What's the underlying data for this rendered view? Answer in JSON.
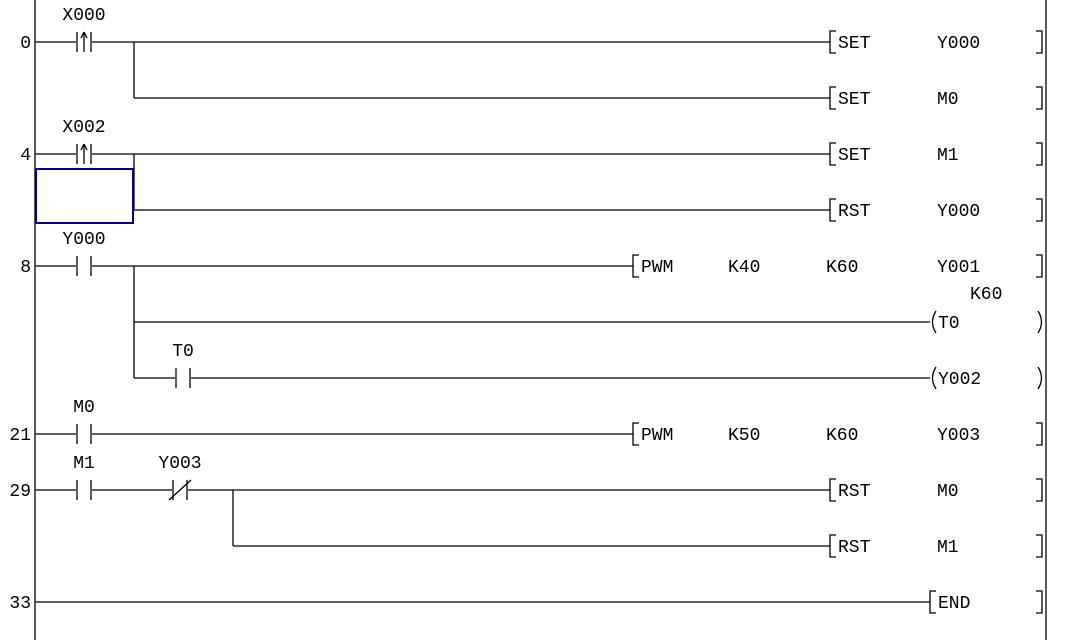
{
  "rows": [
    {
      "step": "0",
      "contacts": [
        {
          "label": "X000",
          "type": "rising"
        }
      ],
      "instruction": {
        "kind": "bracket",
        "op": "SET",
        "args": [
          "Y000"
        ]
      }
    },
    {
      "step": "",
      "contacts": [],
      "instruction": {
        "kind": "bracket",
        "op": "SET",
        "args": [
          "M0"
        ]
      }
    },
    {
      "step": "4",
      "contacts": [
        {
          "label": "X002",
          "type": "rising"
        }
      ],
      "instruction": {
        "kind": "bracket",
        "op": "SET",
        "args": [
          "M1"
        ]
      }
    },
    {
      "step": "",
      "contacts": [],
      "instruction": {
        "kind": "bracket",
        "op": "RST",
        "args": [
          "Y000"
        ]
      }
    },
    {
      "step": "8",
      "contacts": [
        {
          "label": "Y000",
          "type": "no"
        }
      ],
      "instruction": {
        "kind": "bracket",
        "op": "PWM",
        "args": [
          "K40",
          "K60",
          "Y001"
        ]
      }
    },
    {
      "step": "",
      "contacts": [],
      "instruction": {
        "kind": "coil",
        "op": "T0",
        "setting": "K60"
      }
    },
    {
      "step": "",
      "contacts": [
        {
          "label": "T0",
          "type": "no"
        }
      ],
      "instruction": {
        "kind": "coil",
        "op": "Y002"
      }
    },
    {
      "step": "21",
      "contacts": [
        {
          "label": "M0",
          "type": "no"
        }
      ],
      "instruction": {
        "kind": "bracket",
        "op": "PWM",
        "args": [
          "K50",
          "K60",
          "Y003"
        ]
      }
    },
    {
      "step": "29",
      "contacts": [
        {
          "label": "M1",
          "type": "no"
        },
        {
          "label": "Y003",
          "type": "nc"
        }
      ],
      "instruction": {
        "kind": "bracket",
        "op": "RST",
        "args": [
          "M0"
        ]
      }
    },
    {
      "step": "",
      "contacts": [],
      "instruction": {
        "kind": "bracket",
        "op": "RST",
        "args": [
          "M1"
        ]
      }
    },
    {
      "step": "33",
      "contacts": [],
      "instruction": {
        "kind": "end",
        "op": "END"
      }
    }
  ],
  "colors": {
    "wire": "#000000",
    "cursor": "#000080"
  }
}
